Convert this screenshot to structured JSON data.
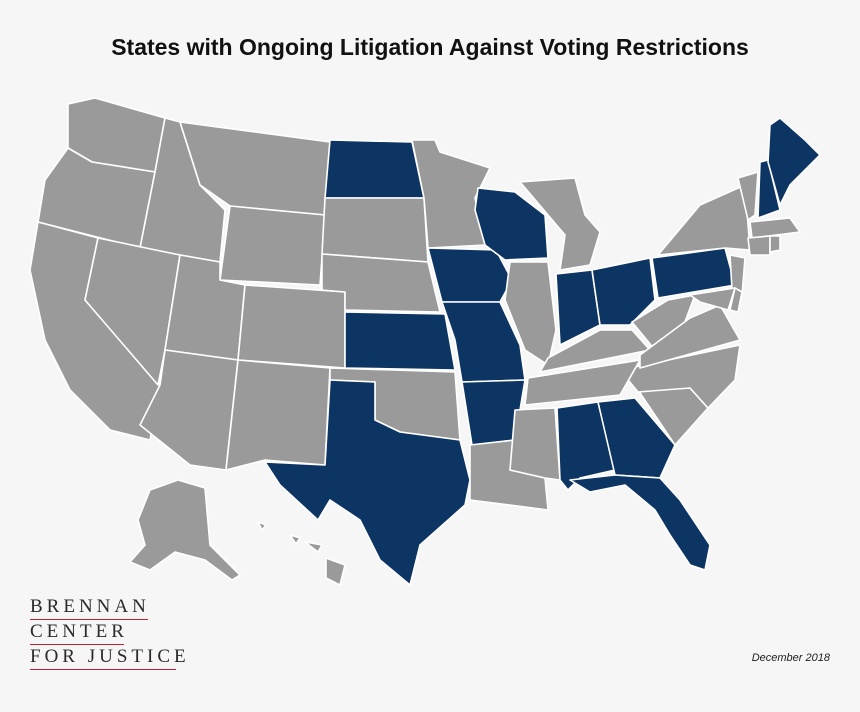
{
  "title": "States with Ongoing Litigation Against Voting Restrictions",
  "date": "December 2018",
  "logo": {
    "line1": "BRENNAN",
    "line2": "CENTER",
    "line3": "FOR JUSTICE"
  },
  "colors": {
    "litigation": "#0d3563",
    "other": "#9a9a9a",
    "border": "#ffffff",
    "logo_rule": "#c8202e",
    "background": "#f6f6f6"
  },
  "states_with_litigation": [
    "ND",
    "WI",
    "IA",
    "KS",
    "MO",
    "AR",
    "TX",
    "IN",
    "OH",
    "PA",
    "AL",
    "GA",
    "FL",
    "ME",
    "NH"
  ]
}
